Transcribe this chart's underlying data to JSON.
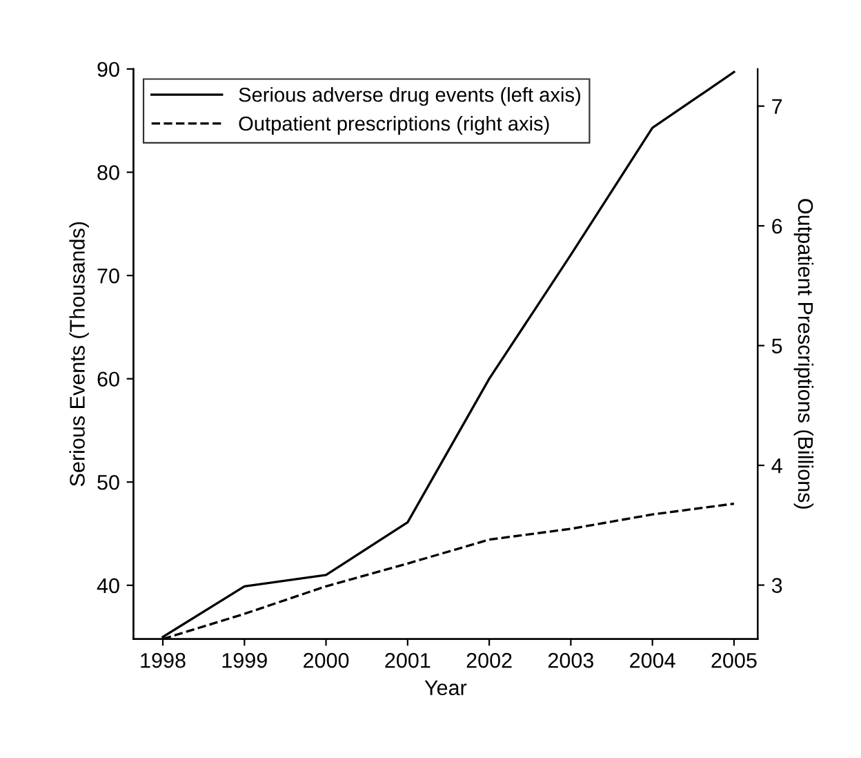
{
  "chart_data": {
    "type": "line",
    "xlabel": "Year",
    "ylabel": "Serious Events (Thousands)",
    "y2label": "Outpatient Prescriptions (Billions)",
    "x": [
      1998,
      1999,
      2000,
      2001,
      2002,
      2003,
      2004,
      2005
    ],
    "series": [
      {
        "name": "Serious adverse drug events (left axis)",
        "color": "#000000",
        "line_style": "solid",
        "values": [
          35,
          39.9,
          41,
          46.1,
          60,
          72,
          84.3,
          89.7
        ]
      },
      {
        "name": "Outpatient prescriptions (right axis)",
        "color": "#000000",
        "line_style": "dashed",
        "axis": "y2",
        "values": [
          2.55,
          2.76,
          2.99,
          3.18,
          3.38,
          3.47,
          3.59,
          3.68
        ]
      }
    ],
    "xlim": [
      1997.64,
      2005.29
    ],
    "xticks": [
      1998,
      1999,
      2000,
      2001,
      2002,
      2003,
      2004,
      2005
    ],
    "ylim": [
      34.8,
      90
    ],
    "yticks": [
      40,
      50,
      60,
      70,
      80,
      90
    ],
    "y2lim": [
      2.55,
      7.31
    ],
    "y2ticks": [
      3,
      4,
      5,
      6,
      7
    ],
    "legend": "top left",
    "grid": false,
    "marker": "none"
  }
}
